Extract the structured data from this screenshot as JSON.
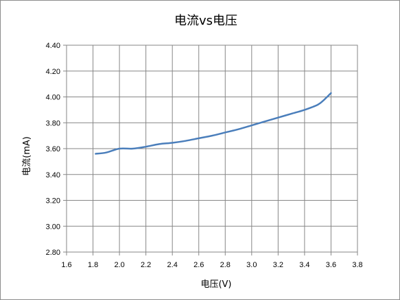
{
  "chart_data": {
    "type": "line",
    "title": "电流vs电压",
    "xlabel": "电压(V)",
    "ylabel": "电流(mA)",
    "xlim": [
      1.6,
      3.8
    ],
    "ylim": [
      2.8,
      4.4
    ],
    "x_ticks": [
      "1.6",
      "1.8",
      "2.0",
      "2.2",
      "2.4",
      "2.6",
      "2.8",
      "3.0",
      "3.2",
      "3.4",
      "3.6",
      "3.8"
    ],
    "y_ticks": [
      "2.80",
      "3.00",
      "3.20",
      "3.40",
      "3.60",
      "3.80",
      "4.00",
      "4.20",
      "4.40"
    ],
    "grid": true,
    "legend": false,
    "series": [
      {
        "color": "#4a7ebb",
        "x": [
          1.82,
          1.9,
          2.0,
          2.1,
          2.2,
          2.3,
          2.4,
          2.5,
          2.6,
          2.7,
          2.8,
          2.9,
          3.0,
          3.1,
          3.2,
          3.3,
          3.4,
          3.5,
          3.55,
          3.6
        ],
        "y": [
          3.56,
          3.57,
          3.6,
          3.6,
          3.615,
          3.635,
          3.645,
          3.66,
          3.68,
          3.7,
          3.725,
          3.75,
          3.78,
          3.81,
          3.84,
          3.87,
          3.9,
          3.94,
          3.98,
          4.03
        ]
      }
    ]
  }
}
